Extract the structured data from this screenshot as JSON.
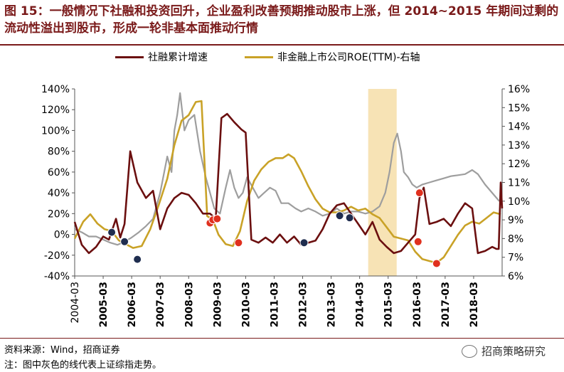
{
  "header": {
    "title": "图 15：一般情况下社融和投资回升，企业盈利改善预期推动股市上涨，但 2014~2015 年期间过剩的流动性溢出到股市，形成一轮非基本面推动行情"
  },
  "footer": {
    "source": "资料来源：Wind，招商证券",
    "note": "注：图中灰色的线代表上证综指走势。",
    "brand": "招商策略研究"
  },
  "colors": {
    "social_financing": "#6b0f0f",
    "roe": "#c9a227",
    "index": "#9e9e9e",
    "shade": "#f7e3b5",
    "dot_navy": "#1f2d4f",
    "dot_red": "#e0301e"
  },
  "chart_data": {
    "type": "line",
    "x_ticks": [
      "2004-03",
      "2005-03",
      "2006-03",
      "2007-03",
      "2008-03",
      "2009-03",
      "2010-03",
      "2011-03",
      "2012-03",
      "2013-03",
      "2014-03",
      "2015-03",
      "2016-03",
      "2017-03",
      "2018-03"
    ],
    "x_ticks_bold": [
      "2005-03",
      "2006-03",
      "2007-03",
      "2008-03",
      "2009-03",
      "2010-03",
      "2011-03",
      "2012-03",
      "2013-03",
      "2014-03",
      "2015-03",
      "2016-03",
      "2017-03",
      "2018-03"
    ],
    "x_range": [
      2004.0,
      2019.0
    ],
    "y_left": {
      "range": [
        -40,
        140
      ],
      "ticks": [
        "-40%",
        "-20%",
        "0%",
        "20%",
        "40%",
        "60%",
        "80%",
        "100%",
        "120%",
        "140%"
      ]
    },
    "y_right": {
      "range": [
        6,
        16
      ],
      "ticks": [
        "6%",
        "7%",
        "8%",
        "9%",
        "10%",
        "11%",
        "12%",
        "13%",
        "14%",
        "15%",
        "16%"
      ]
    },
    "shaded_region": [
      2014.3,
      2015.3
    ],
    "series": [
      {
        "name": "社融累计增速",
        "axis": "left",
        "color": "#6b0f0f",
        "points": [
          [
            2004.0,
            12
          ],
          [
            2004.25,
            -10
          ],
          [
            2004.5,
            -18
          ],
          [
            2004.75,
            -12
          ],
          [
            2005.0,
            -2
          ],
          [
            2005.2,
            -5
          ],
          [
            2005.45,
            15
          ],
          [
            2005.6,
            -3
          ],
          [
            2005.75,
            10
          ],
          [
            2005.95,
            80
          ],
          [
            2006.2,
            50
          ],
          [
            2006.5,
            35
          ],
          [
            2006.75,
            42
          ],
          [
            2007.0,
            5
          ],
          [
            2007.25,
            25
          ],
          [
            2007.5,
            35
          ],
          [
            2007.75,
            40
          ],
          [
            2008.0,
            38
          ],
          [
            2008.25,
            30
          ],
          [
            2008.5,
            20
          ],
          [
            2008.75,
            20
          ],
          [
            2008.95,
            15
          ],
          [
            2009.15,
            112
          ],
          [
            2009.35,
            116
          ],
          [
            2009.6,
            108
          ],
          [
            2009.85,
            101
          ],
          [
            2010.0,
            98
          ],
          [
            2010.2,
            -5
          ],
          [
            2010.45,
            -8
          ],
          [
            2010.7,
            -3
          ],
          [
            2010.95,
            -8
          ],
          [
            2011.2,
            0
          ],
          [
            2011.45,
            -8
          ],
          [
            2011.7,
            -2
          ],
          [
            2011.95,
            -10
          ],
          [
            2012.2,
            -8
          ],
          [
            2012.45,
            -6
          ],
          [
            2012.7,
            5
          ],
          [
            2012.95,
            20
          ],
          [
            2013.2,
            28
          ],
          [
            2013.45,
            30
          ],
          [
            2013.7,
            20
          ],
          [
            2013.95,
            10
          ],
          [
            2014.2,
            0
          ],
          [
            2014.45,
            12
          ],
          [
            2014.7,
            -5
          ],
          [
            2014.95,
            -12
          ],
          [
            2015.2,
            -18
          ],
          [
            2015.45,
            -16
          ],
          [
            2015.7,
            -8
          ],
          [
            2015.95,
            0
          ],
          [
            2016.1,
            35
          ],
          [
            2016.25,
            45
          ],
          [
            2016.45,
            10
          ],
          [
            2016.7,
            12
          ],
          [
            2016.95,
            15
          ],
          [
            2017.2,
            8
          ],
          [
            2017.45,
            20
          ],
          [
            2017.7,
            30
          ],
          [
            2017.95,
            25
          ],
          [
            2018.15,
            -18
          ],
          [
            2018.4,
            -16
          ],
          [
            2018.65,
            -12
          ],
          [
            2018.8,
            -14
          ],
          [
            2018.88,
            -14
          ],
          [
            2018.95,
            50
          ],
          [
            2019.0,
            25
          ]
        ]
      },
      {
        "name": "非金融上市公司ROE(TTM)-右轴",
        "axis": "right",
        "color": "#c9a227",
        "points": [
          [
            2004.0,
            8.0
          ],
          [
            2004.3,
            8.9
          ],
          [
            2004.55,
            9.3
          ],
          [
            2004.8,
            8.8
          ],
          [
            2005.05,
            8.5
          ],
          [
            2005.3,
            8.4
          ],
          [
            2005.55,
            7.9
          ],
          [
            2005.8,
            7.7
          ],
          [
            2006.05,
            7.5
          ],
          [
            2006.35,
            7.6
          ],
          [
            2006.65,
            8.5
          ],
          [
            2006.95,
            9.8
          ],
          [
            2007.25,
            11.2
          ],
          [
            2007.5,
            13.0
          ],
          [
            2007.75,
            14.3
          ],
          [
            2008.0,
            14.6
          ],
          [
            2008.25,
            15.3
          ],
          [
            2008.45,
            15.35
          ],
          [
            2008.65,
            9.2
          ],
          [
            2008.85,
            9.0
          ],
          [
            2009.05,
            8.2
          ],
          [
            2009.3,
            7.7
          ],
          [
            2009.55,
            7.6
          ],
          [
            2009.8,
            8.4
          ],
          [
            2010.05,
            10.0
          ],
          [
            2010.3,
            11.1
          ],
          [
            2010.55,
            11.7
          ],
          [
            2010.8,
            12.1
          ],
          [
            2011.05,
            12.3
          ],
          [
            2011.3,
            12.3
          ],
          [
            2011.5,
            12.5
          ],
          [
            2011.7,
            12.3
          ],
          [
            2011.95,
            11.6
          ],
          [
            2012.2,
            10.8
          ],
          [
            2012.45,
            10.1
          ],
          [
            2012.7,
            9.6
          ],
          [
            2012.95,
            9.4
          ],
          [
            2013.2,
            9.4
          ],
          [
            2013.45,
            9.5
          ],
          [
            2013.7,
            9.7
          ],
          [
            2013.95,
            9.5
          ],
          [
            2014.2,
            9.6
          ],
          [
            2014.45,
            9.3
          ],
          [
            2014.7,
            9.1
          ],
          [
            2014.95,
            8.6
          ],
          [
            2015.2,
            8.1
          ],
          [
            2015.45,
            8.0
          ],
          [
            2015.7,
            7.9
          ],
          [
            2015.95,
            7.3
          ],
          [
            2016.2,
            6.9
          ],
          [
            2016.45,
            6.8
          ],
          [
            2016.7,
            6.7
          ],
          [
            2016.95,
            7.0
          ],
          [
            2017.2,
            7.6
          ],
          [
            2017.45,
            8.2
          ],
          [
            2017.7,
            8.7
          ],
          [
            2017.95,
            8.9
          ],
          [
            2018.2,
            8.8
          ],
          [
            2018.45,
            9.1
          ],
          [
            2018.7,
            9.4
          ],
          [
            2018.95,
            9.3
          ]
        ]
      },
      {
        "name": "上证综指",
        "axis": "left",
        "color": "#9e9e9e",
        "points": [
          [
            2004.0,
            5
          ],
          [
            2004.25,
            2
          ],
          [
            2004.5,
            -2
          ],
          [
            2004.75,
            -2
          ],
          [
            2005.0,
            -5
          ],
          [
            2005.25,
            -8
          ],
          [
            2005.5,
            -10
          ],
          [
            2005.75,
            -7
          ],
          [
            2006.0,
            -3
          ],
          [
            2006.25,
            2
          ],
          [
            2006.5,
            8
          ],
          [
            2006.75,
            15
          ],
          [
            2007.0,
            40
          ],
          [
            2007.25,
            75
          ],
          [
            2007.4,
            60
          ],
          [
            2007.5,
            100
          ],
          [
            2007.6,
            115
          ],
          [
            2007.7,
            136
          ],
          [
            2007.85,
            100
          ],
          [
            2008.0,
            110
          ],
          [
            2008.2,
            115
          ],
          [
            2008.4,
            80
          ],
          [
            2008.6,
            55
          ],
          [
            2008.75,
            40
          ],
          [
            2008.9,
            25
          ],
          [
            2009.1,
            20
          ],
          [
            2009.3,
            45
          ],
          [
            2009.45,
            62
          ],
          [
            2009.6,
            45
          ],
          [
            2009.75,
            35
          ],
          [
            2009.9,
            40
          ],
          [
            2010.05,
            55
          ],
          [
            2010.25,
            45
          ],
          [
            2010.45,
            35
          ],
          [
            2010.65,
            40
          ],
          [
            2010.85,
            45
          ],
          [
            2011.05,
            42
          ],
          [
            2011.25,
            30
          ],
          [
            2011.5,
            30
          ],
          [
            2011.75,
            25
          ],
          [
            2011.95,
            22
          ],
          [
            2012.2,
            25
          ],
          [
            2012.45,
            22
          ],
          [
            2012.7,
            18
          ],
          [
            2012.95,
            20
          ],
          [
            2013.2,
            25
          ],
          [
            2013.45,
            20
          ],
          [
            2013.7,
            22
          ],
          [
            2013.95,
            22
          ],
          [
            2014.2,
            20
          ],
          [
            2014.45,
            22
          ],
          [
            2014.7,
            27
          ],
          [
            2014.9,
            40
          ],
          [
            2015.05,
            60
          ],
          [
            2015.2,
            88
          ],
          [
            2015.32,
            97
          ],
          [
            2015.45,
            80
          ],
          [
            2015.55,
            60
          ],
          [
            2015.7,
            55
          ],
          [
            2015.85,
            48
          ],
          [
            2016.0,
            45
          ],
          [
            2016.2,
            48
          ],
          [
            2016.45,
            50
          ],
          [
            2016.7,
            52
          ],
          [
            2016.95,
            54
          ],
          [
            2017.2,
            56
          ],
          [
            2017.45,
            57
          ],
          [
            2017.7,
            58
          ],
          [
            2017.95,
            62
          ],
          [
            2018.15,
            58
          ],
          [
            2018.4,
            48
          ],
          [
            2018.65,
            40
          ],
          [
            2018.9,
            32
          ]
        ]
      }
    ],
    "markers": [
      {
        "x": 2005.3,
        "axis": "left",
        "y": 2,
        "color": "#1f2d4f"
      },
      {
        "x": 2005.75,
        "axis": "left",
        "y": -7,
        "color": "#1f2d4f"
      },
      {
        "x": 2006.2,
        "axis": "left",
        "y": -24,
        "color": "#1f2d4f"
      },
      {
        "x": 2008.75,
        "axis": "left",
        "y": 11,
        "color": "#e0301e"
      },
      {
        "x": 2008.85,
        "axis": "left",
        "y": 14,
        "color": "#e0301e"
      },
      {
        "x": 2009.0,
        "axis": "left",
        "y": 15,
        "color": "#e0301e"
      },
      {
        "x": 2009.75,
        "axis": "left",
        "y": -8,
        "color": "#e0301e"
      },
      {
        "x": 2012.05,
        "axis": "left",
        "y": -8,
        "color": "#1f2d4f"
      },
      {
        "x": 2013.3,
        "axis": "left",
        "y": 18,
        "color": "#1f2d4f"
      },
      {
        "x": 2013.65,
        "axis": "left",
        "y": 16,
        "color": "#1f2d4f"
      },
      {
        "x": 2016.1,
        "axis": "left",
        "y": 40,
        "color": "#e0301e"
      },
      {
        "x": 2016.05,
        "axis": "left",
        "y": -7,
        "color": "#e0301e"
      },
      {
        "x": 2016.7,
        "axis": "left",
        "y": -28,
        "color": "#e0301e"
      }
    ]
  }
}
